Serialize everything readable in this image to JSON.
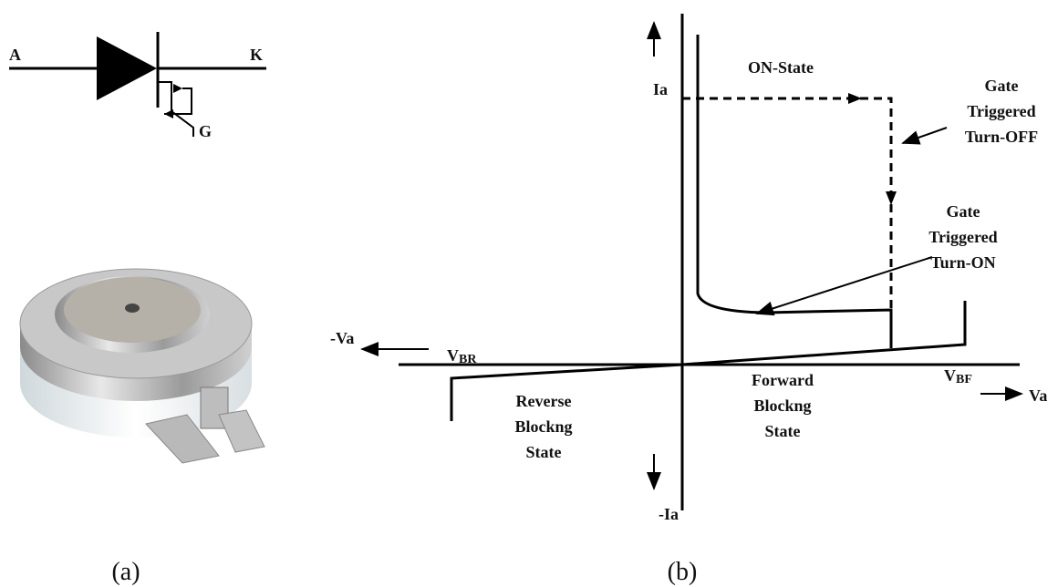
{
  "schematic": {
    "anode": "A",
    "cathode": "K",
    "gate": "G"
  },
  "captions": {
    "a": "(a)",
    "b": "(b)"
  },
  "graph": {
    "y_axis_pos": "Ia",
    "y_axis_neg": "-Ia",
    "x_axis_neg": "-Va",
    "x_axis_pos": "Va",
    "on_state": "ON-State",
    "turn_off": {
      "lines": [
        "Gate",
        "Triggered",
        "Turn-OFF"
      ]
    },
    "turn_on": {
      "lines": [
        "Gate",
        "Triggered",
        "Turn-ON"
      ]
    },
    "vbr": {
      "main": "V",
      "sub": "BR"
    },
    "vbf": {
      "main": "V",
      "sub": "BF"
    },
    "forward": {
      "lines": [
        "Forward",
        "Blockng",
        "State"
      ]
    },
    "reverse": {
      "lines": [
        "Reverse",
        "Blockng",
        "State"
      ]
    }
  }
}
